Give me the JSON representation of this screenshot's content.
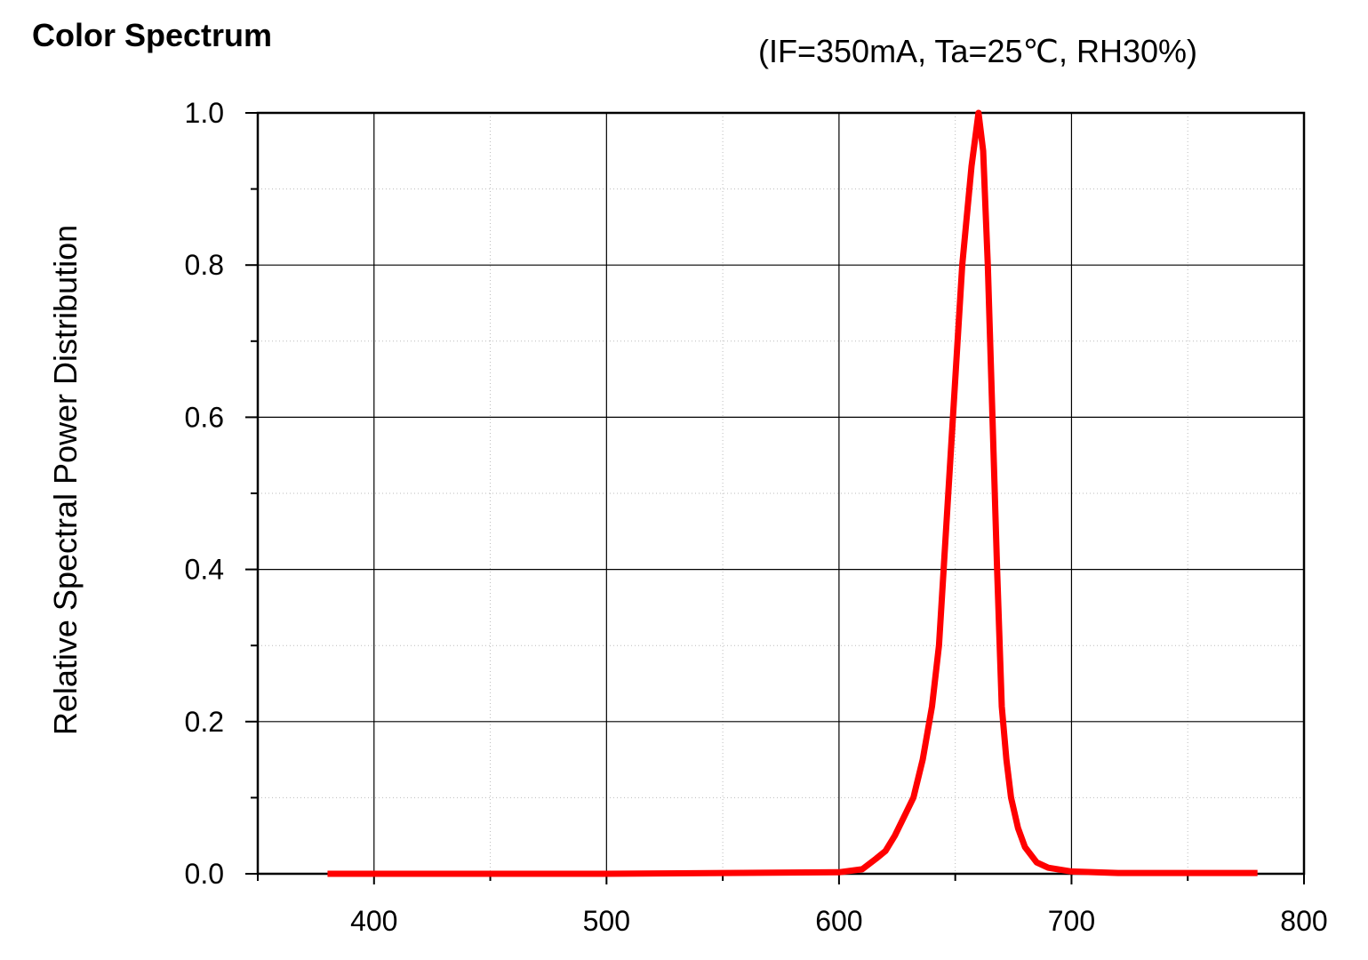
{
  "chart_data": {
    "type": "line",
    "title": "Color Spectrum",
    "subtitle": "(IF=350mA, Ta=25℃, RH30%)",
    "y_label": "Relative Spectral Power Distribution",
    "x": [
      380,
      400,
      500,
      600,
      610,
      616,
      620,
      624,
      628,
      632,
      636,
      640,
      643,
      645,
      649,
      653,
      657,
      660,
      662,
      664,
      666,
      668,
      670,
      672,
      674,
      677,
      680,
      685,
      690,
      700,
      720,
      780
    ],
    "series": [
      {
        "color": "#ff0000",
        "values": [
          0,
          0,
          0,
          0.002,
          0.006,
          0.02,
          0.03,
          0.05,
          0.075,
          0.1,
          0.15,
          0.22,
          0.3,
          0.4,
          0.6,
          0.8,
          0.93,
          1.0,
          0.95,
          0.8,
          0.6,
          0.4,
          0.22,
          0.15,
          0.1,
          0.06,
          0.035,
          0.015,
          0.008,
          0.003,
          0.001,
          0.001
        ]
      }
    ],
    "xlim": [
      350,
      800
    ],
    "xticks": [
      400,
      500,
      600,
      700,
      800
    ],
    "xminorticks": [
      350,
      450,
      550,
      650,
      750
    ],
    "ylim": [
      0,
      1
    ],
    "yticks": [
      {
        "value": 0,
        "label": "0.0"
      },
      {
        "value": 0.2,
        "label": "0.2"
      },
      {
        "value": 0.4,
        "label": "0.4"
      },
      {
        "value": 0.6,
        "label": "0.6"
      },
      {
        "value": 0.8,
        "label": "0.8"
      },
      {
        "value": 1,
        "label": "1.0"
      }
    ],
    "yminorticks": [
      0.1,
      0.3,
      0.5,
      0.7,
      0.9
    ],
    "grid": true
  }
}
